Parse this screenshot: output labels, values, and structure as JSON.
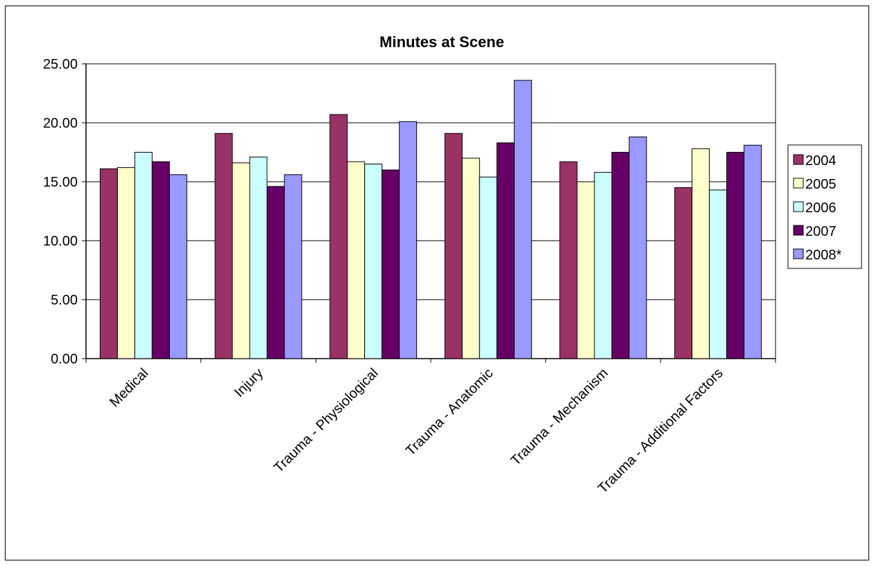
{
  "chart_data": {
    "type": "bar",
    "title": "Minutes at Scene",
    "xlabel": "",
    "ylabel": "",
    "ylim": [
      0,
      25
    ],
    "yticks": [
      "0.00",
      "5.00",
      "10.00",
      "15.00",
      "20.00",
      "25.00"
    ],
    "grid": "horizontal",
    "legend_position": "right",
    "categories": [
      "Medical",
      "Injury",
      "Trauma - Physiological",
      "Trauma - Anatomic",
      "Trauma - Mechanism",
      "Trauma - Additional Factors"
    ],
    "series": [
      {
        "name": "2004",
        "color": "#993366",
        "values": [
          16.1,
          19.1,
          20.7,
          19.1,
          16.7,
          14.5
        ]
      },
      {
        "name": "2005",
        "color": "#FFFFCC",
        "values": [
          16.2,
          16.6,
          16.7,
          17.0,
          15.0,
          17.8
        ]
      },
      {
        "name": "2006",
        "color": "#CCFFFF",
        "values": [
          17.5,
          17.1,
          16.5,
          15.4,
          15.8,
          14.3
        ]
      },
      {
        "name": "2007",
        "color": "#660066",
        "values": [
          16.7,
          14.6,
          16.0,
          18.3,
          17.5,
          17.5
        ]
      },
      {
        "name": "2008*",
        "color": "#9999FF",
        "values": [
          15.6,
          15.6,
          20.1,
          23.6,
          18.8,
          18.1
        ]
      }
    ]
  }
}
